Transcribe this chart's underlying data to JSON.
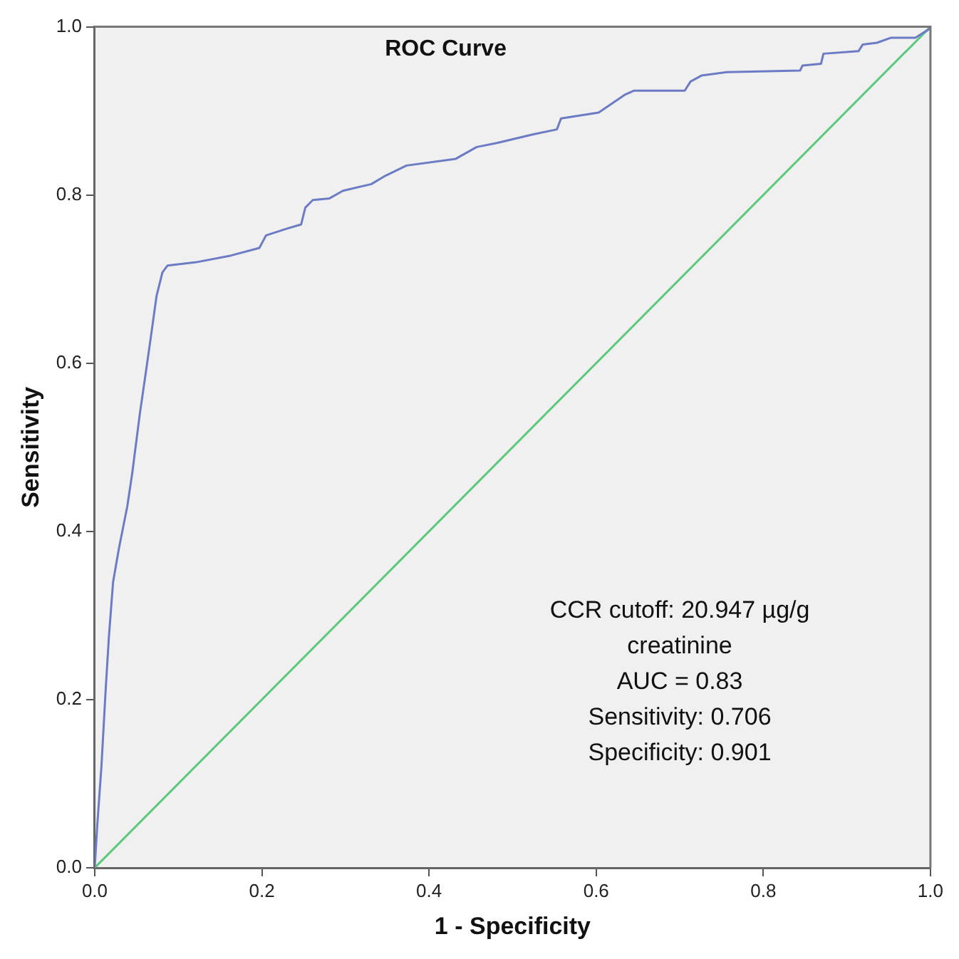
{
  "chart_data": {
    "type": "line",
    "title": "ROC Curve",
    "xlabel": "1 - Specificity",
    "ylabel": "Sensitivity",
    "xlim": [
      0,
      1
    ],
    "ylim": [
      0,
      1
    ],
    "xticks": [
      {
        "value": 0,
        "label": "0.0"
      },
      {
        "value": 0.2,
        "label": "0.2"
      },
      {
        "value": 0.4,
        "label": "0.4"
      },
      {
        "value": 0.6,
        "label": "0.6"
      },
      {
        "value": 0.8,
        "label": "0.8"
      },
      {
        "value": 1,
        "label": "1.0"
      }
    ],
    "yticks": [
      {
        "value": 0,
        "label": "0.0"
      },
      {
        "value": 0.2,
        "label": "0.2"
      },
      {
        "value": 0.4,
        "label": "0.4"
      },
      {
        "value": 0.6,
        "label": "0.6"
      },
      {
        "value": 0.8,
        "label": "0.8"
      },
      {
        "value": 1,
        "label": "1.0"
      }
    ],
    "grid": false,
    "legend": false,
    "series": [
      {
        "color": "#6b7cc4",
        "x": [
          0,
          0.003,
          0.008,
          0.013,
          0.017,
          0.022,
          0.029,
          0.039,
          0.045,
          0.054,
          0.062,
          0.067,
          0.074,
          0.081,
          0.087,
          0.121,
          0.163,
          0.197,
          0.205,
          0.23,
          0.247,
          0.252,
          0.261,
          0.281,
          0.297,
          0.331,
          0.348,
          0.373,
          0.432,
          0.457,
          0.482,
          0.524,
          0.553,
          0.558,
          0.603,
          0.634,
          0.645,
          0.706,
          0.713,
          0.726,
          0.756,
          0.844,
          0.847,
          0.869,
          0.872,
          0.914,
          0.919,
          0.936,
          0.953,
          0.982,
          0.998,
          1
        ],
        "values": [
          0,
          0.05,
          0.12,
          0.21,
          0.275,
          0.34,
          0.38,
          0.43,
          0.47,
          0.54,
          0.595,
          0.63,
          0.68,
          0.708,
          0.716,
          0.72,
          0.728,
          0.737,
          0.752,
          0.76,
          0.765,
          0.785,
          0.794,
          0.796,
          0.805,
          0.813,
          0.823,
          0.835,
          0.843,
          0.857,
          0.862,
          0.872,
          0.878,
          0.891,
          0.898,
          0.919,
          0.924,
          0.924,
          0.935,
          0.942,
          0.946,
          0.948,
          0.954,
          0.956,
          0.968,
          0.971,
          0.979,
          0.981,
          0.987,
          0.987,
          0.997,
          1
        ]
      },
      {
        "color": "#5cc97a",
        "x": [
          0,
          1
        ],
        "values": [
          0,
          1
        ]
      }
    ],
    "annotations": [
      "CCR cutoff: 20.947 µg/g creatinine",
      "AUC = 0.83",
      "Sensitivity: 0.706",
      "Specificity: 0.901"
    ]
  }
}
